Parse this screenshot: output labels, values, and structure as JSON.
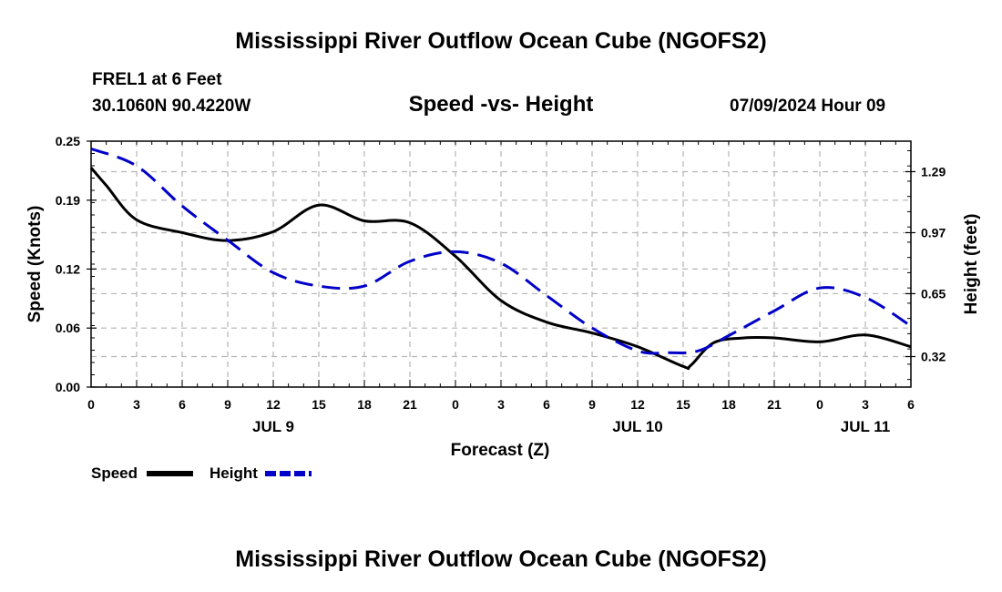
{
  "page": {
    "title_top": "Mississippi River Outflow Ocean Cube (NGOFS2)",
    "title_bottom": "Mississippi River Outflow Ocean Cube (NGOFS2)",
    "station": "FREL1 at 6 Feet",
    "coords": "30.1060N  90.4220W",
    "date_stamp": "07/09/2024 Hour 09"
  },
  "chart_data": {
    "type": "line",
    "title": "Speed -vs- Height",
    "xlabel": "Forecast (Z)",
    "ylabel": "Speed (Knots)",
    "y2label": "Height (feet)",
    "x_hours": [
      0,
      2,
      4,
      6,
      9,
      12,
      15,
      18,
      21,
      24,
      27,
      30,
      33,
      36,
      39,
      42,
      45,
      48,
      51,
      54
    ],
    "xlim": [
      0,
      54
    ],
    "x_tick_hours": [
      0,
      3,
      6,
      9,
      12,
      15,
      18,
      21,
      24,
      27,
      30,
      33,
      36,
      39,
      42,
      45,
      48,
      51,
      54
    ],
    "x_tick_labels": [
      "0",
      "3",
      "6",
      "9",
      "12",
      "15",
      "18",
      "21",
      "0",
      "3",
      "6",
      "9",
      "12",
      "15",
      "18",
      "21",
      "0",
      "3",
      "6"
    ],
    "date_labels": [
      {
        "label": "JUL 9",
        "hour": 12
      },
      {
        "label": "JUL 10",
        "hour": 36
      },
      {
        "label": "JUL 11",
        "hour": 51
      }
    ],
    "ylim": [
      0,
      0.25
    ],
    "y_ticks": [
      0.0,
      0.06,
      0.12,
      0.19,
      0.25
    ],
    "y_tick_labels": [
      "0.00",
      "0.06",
      "0.12",
      "0.19",
      "0.25"
    ],
    "y2lim": [
      0.16,
      1.45
    ],
    "y2_ticks": [
      0.32,
      0.65,
      0.97,
      1.29
    ],
    "y2_tick_labels": [
      "0.32",
      "0.65",
      "0.97",
      "1.29"
    ],
    "series": [
      {
        "name": "Speed",
        "axis": "left",
        "color": "#000000",
        "dash": "solid",
        "x": [
          0,
          1,
          3,
          6,
          9,
          12,
          15,
          18,
          21,
          24,
          27,
          30,
          33,
          36,
          39,
          39.5,
          41,
          43,
          45,
          48,
          51,
          54
        ],
        "values": [
          0.223,
          0.205,
          0.17,
          0.157,
          0.149,
          0.158,
          0.185,
          0.169,
          0.167,
          0.133,
          0.088,
          0.066,
          0.055,
          0.041,
          0.021,
          0.022,
          0.045,
          0.05,
          0.05,
          0.046,
          0.053,
          0.041
        ]
      },
      {
        "name": "Height",
        "axis": "right",
        "color": "#0000c8",
        "dash": "dashed",
        "x": [
          0,
          3,
          6,
          9,
          12,
          15,
          18,
          21,
          24,
          27,
          30,
          33,
          36,
          38,
          40,
          42,
          45,
          48,
          51,
          54
        ],
        "values": [
          1.41,
          1.32,
          1.11,
          0.93,
          0.76,
          0.69,
          0.69,
          0.82,
          0.87,
          0.81,
          0.64,
          0.47,
          0.35,
          0.34,
          0.35,
          0.43,
          0.56,
          0.68,
          0.63,
          0.48
        ]
      }
    ],
    "legend": [
      {
        "label": "Speed",
        "color": "#000000",
        "dash": "solid"
      },
      {
        "label": "Height",
        "color": "#0000c8",
        "dash": "dashed"
      }
    ],
    "grid": true
  }
}
